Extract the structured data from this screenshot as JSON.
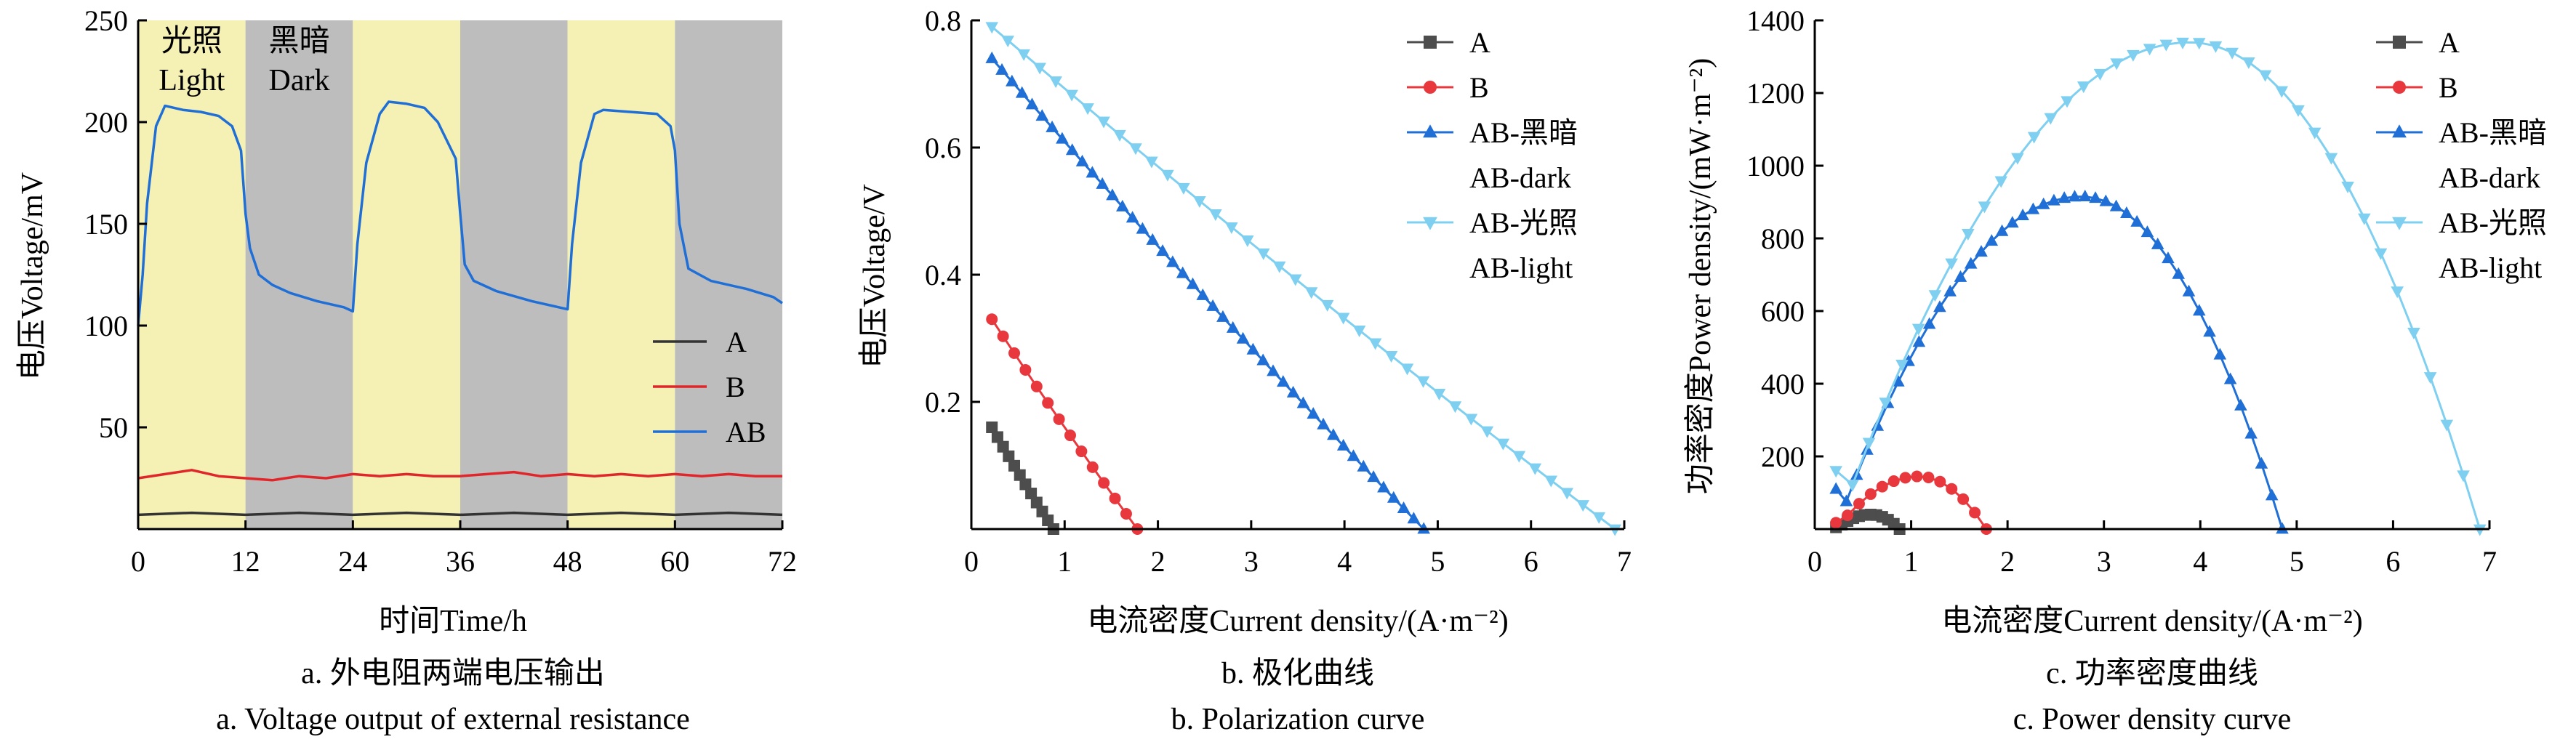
{
  "chart_data": [
    {
      "id": "a",
      "type": "line",
      "xlabel": "时间Time/h",
      "ylabel": "电压Voltage/mV",
      "xlim": [
        0,
        72
      ],
      "ylim": [
        0,
        250
      ],
      "xticks": [
        "0",
        "12",
        "24",
        "36",
        "48",
        "60",
        "72"
      ],
      "yticks": [
        "50",
        "100",
        "150",
        "200",
        "250"
      ],
      "caption_cn": "a. 外电阻两端电压输出",
      "caption_en": "a. Voltage output of external resistance",
      "legend_position": "right",
      "bands": [
        {
          "start": 0,
          "end": 12,
          "state": "light",
          "label_cn": "光照",
          "label_en": "Light",
          "color": "#f5f0b4"
        },
        {
          "start": 12,
          "end": 24,
          "state": "dark",
          "label_cn": "黑暗",
          "label_en": "Dark",
          "color": "#bdbdbd"
        },
        {
          "start": 24,
          "end": 36,
          "state": "light",
          "label_cn": "",
          "label_en": "",
          "color": "#f5f0b4"
        },
        {
          "start": 36,
          "end": 48,
          "state": "dark",
          "label_cn": "",
          "label_en": "",
          "color": "#bdbdbd"
        },
        {
          "start": 48,
          "end": 60,
          "state": "light",
          "label_cn": "",
          "label_en": "",
          "color": "#f5f0b4"
        },
        {
          "start": 60,
          "end": 72,
          "state": "dark",
          "label_cn": "",
          "label_en": "",
          "color": "#bdbdbd"
        }
      ],
      "series": [
        {
          "name": "A",
          "color": "#333333",
          "x": [
            0,
            6,
            12,
            18,
            24,
            30,
            36,
            42,
            48,
            54,
            60,
            66,
            72
          ],
          "y": [
            7,
            8,
            7,
            8,
            7,
            8,
            7,
            8,
            7,
            8,
            7,
            8,
            7
          ]
        },
        {
          "name": "B",
          "color": "#e0262b",
          "x": [
            0,
            3,
            6,
            9,
            12,
            15,
            18,
            21,
            24,
            27,
            30,
            33,
            36,
            39,
            42,
            45,
            48,
            51,
            54,
            57,
            60,
            63,
            66,
            69,
            72
          ],
          "y": [
            25,
            27,
            29,
            26,
            25,
            24,
            26,
            25,
            27,
            26,
            27,
            26,
            26,
            27,
            28,
            26,
            27,
            26,
            27,
            26,
            27,
            26,
            27,
            26,
            26
          ]
        },
        {
          "name": "AB",
          "color": "#1f6fd6",
          "x": [
            0,
            0.5,
            1,
            2,
            3,
            5,
            7,
            9,
            10.5,
            11.5,
            12,
            12.5,
            13.5,
            15,
            17,
            20,
            23,
            24,
            24.5,
            25.5,
            27,
            28,
            30,
            32,
            33.5,
            35.5,
            36,
            36.5,
            37.5,
            40,
            44,
            47,
            48,
            48.5,
            49.5,
            51,
            52,
            55,
            58,
            59.5,
            60,
            60.5,
            61.5,
            64,
            68,
            71,
            72
          ],
          "y": [
            100,
            125,
            160,
            198,
            208,
            206,
            205,
            203,
            198,
            186,
            155,
            138,
            125,
            120,
            116,
            112,
            109,
            107,
            140,
            180,
            204,
            210,
            209,
            207,
            200,
            182,
            155,
            130,
            122,
            117,
            112,
            109,
            108,
            140,
            180,
            204,
            206,
            205,
            204,
            198,
            186,
            150,
            128,
            122,
            118,
            114,
            111
          ]
        }
      ]
    },
    {
      "id": "b",
      "type": "line",
      "xlabel": "电流密度Current density/(A·m⁻²)",
      "ylabel": "电压Voltage/V",
      "xlim": [
        0,
        7
      ],
      "ylim": [
        0,
        0.8
      ],
      "xticks": [
        "0",
        "1",
        "2",
        "3",
        "4",
        "5",
        "6",
        "7"
      ],
      "yticks": [
        "0.2",
        "0.4",
        "0.6",
        "0.8"
      ],
      "caption_cn": "b. 极化曲线",
      "caption_en": "b. Polarization curve",
      "legend_position": "top-right",
      "series": [
        {
          "name": "A",
          "marker": "square",
          "color": "#4d4d4d",
          "x_start": 0.22,
          "x_end": 0.88,
          "y_start": 0.16,
          "y_end": 0.0,
          "points": 12
        },
        {
          "name": "B",
          "marker": "circle",
          "color": "#e8383d",
          "x_start": 0.22,
          "x_end": 1.78,
          "y_start": 0.33,
          "y_end": 0.0,
          "points": 14
        },
        {
          "name": "AB-黑暗",
          "name2": "AB-dark",
          "marker": "triangle-up",
          "color": "#1f6fd6",
          "x_start": 0.22,
          "x_end": 4.85,
          "y_start": 0.74,
          "y_end": 0.0,
          "points": 44
        },
        {
          "name": "AB-光照",
          "name2": "AB-light",
          "marker": "triangle-down",
          "color": "#7fd0f0",
          "x_start": 0.22,
          "x_end": 6.9,
          "y_start": 0.79,
          "y_end": 0.0,
          "points": 40
        }
      ]
    },
    {
      "id": "c",
      "type": "line",
      "xlabel": "电流密度Current density/(A·m⁻²)",
      "ylabel": "功率密度Power density/(mW·m⁻²)",
      "xlim": [
        0,
        7
      ],
      "ylim": [
        0,
        1400
      ],
      "xticks": [
        "0",
        "1",
        "2",
        "3",
        "4",
        "5",
        "6",
        "7"
      ],
      "yticks": [
        "200",
        "400",
        "600",
        "800",
        "1000",
        "1200",
        "1400"
      ],
      "caption_cn": "c. 功率密度曲线",
      "caption_en": "c. Power density curve",
      "legend_position": "top-right",
      "series": [
        {
          "name": "A",
          "marker": "square",
          "color": "#4d4d4d",
          "x_start": 0.22,
          "x_end": 0.88,
          "peak": 40,
          "points": 12
        },
        {
          "name": "B",
          "marker": "circle",
          "color": "#e8383d",
          "x_start": 0.22,
          "x_end": 1.78,
          "peak": 145,
          "points": 14
        },
        {
          "name": "AB-黑暗",
          "name2": "AB-dark",
          "marker": "triangle-up",
          "color": "#1f6fd6",
          "x_start": 0.22,
          "x_end": 4.85,
          "peak": 915,
          "points": 44
        },
        {
          "name": "AB-光照",
          "name2": "AB-light",
          "marker": "triangle-down",
          "color": "#7fd0f0",
          "x_start": 0.22,
          "x_end": 6.9,
          "peak": 1340,
          "points": 40
        }
      ]
    }
  ]
}
